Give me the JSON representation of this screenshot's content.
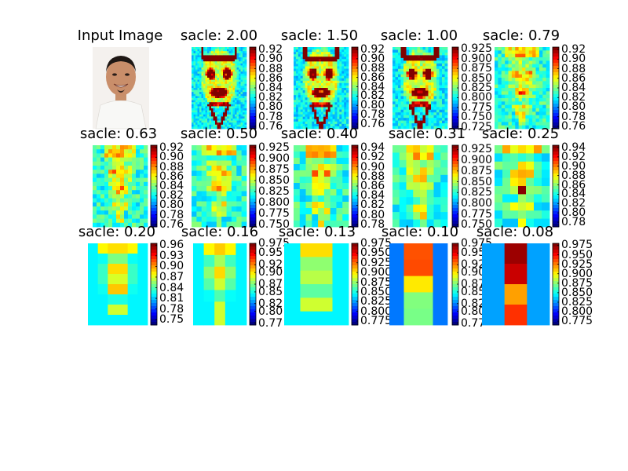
{
  "figure": {
    "background": "#ffffff",
    "colormap": "jet"
  },
  "input_image": {
    "title": "Input Image",
    "description_icon": "portrait-photo"
  },
  "chart_data": [
    {
      "type": "heatmap",
      "title": "sacle: 2.00",
      "colorbar_ticks": [
        "0.92",
        "0.90",
        "0.88",
        "0.86",
        "0.84",
        "0.82",
        "0.80",
        "0.78",
        "0.76"
      ],
      "range": [
        0.755,
        0.925
      ]
    },
    {
      "type": "heatmap",
      "title": "sacle: 1.50",
      "colorbar_ticks": [
        "0.92",
        "0.90",
        "0.88",
        "0.86",
        "0.84",
        "0.82",
        "0.80",
        "0.78",
        "0.76"
      ],
      "range": [
        0.75,
        0.925
      ]
    },
    {
      "type": "heatmap",
      "title": "sacle: 1.00",
      "colorbar_ticks": [
        "0.925",
        "0.900",
        "0.875",
        "0.850",
        "0.825",
        "0.800",
        "0.775",
        "0.750",
        "0.725"
      ],
      "range": [
        0.72,
        0.93
      ]
    },
    {
      "type": "heatmap",
      "title": "sacle: 0.79",
      "colorbar_ticks": [
        "0.92",
        "0.90",
        "0.88",
        "0.86",
        "0.84",
        "0.82",
        "0.80",
        "0.78",
        "0.76"
      ],
      "range": [
        0.755,
        0.925
      ]
    },
    {
      "type": "heatmap",
      "title": "sacle: 0.63",
      "colorbar_ticks": [
        "0.92",
        "0.90",
        "0.88",
        "0.86",
        "0.84",
        "0.82",
        "0.80",
        "0.78",
        "0.76"
      ],
      "range": [
        0.755,
        0.925
      ]
    },
    {
      "type": "heatmap",
      "title": "sacle: 0.50",
      "colorbar_ticks": [
        "0.925",
        "0.900",
        "0.875",
        "0.850",
        "0.825",
        "0.800",
        "0.775",
        "0.750"
      ],
      "range": [
        0.745,
        0.93
      ]
    },
    {
      "type": "heatmap",
      "title": "sacle: 0.40",
      "colorbar_ticks": [
        "0.94",
        "0.92",
        "0.90",
        "0.88",
        "0.86",
        "0.84",
        "0.82",
        "0.80",
        "0.78"
      ],
      "range": [
        0.775,
        0.945
      ]
    },
    {
      "type": "heatmap",
      "title": "sacle: 0.31",
      "colorbar_ticks": [
        "0.925",
        "0.900",
        "0.875",
        "0.850",
        "0.825",
        "0.800",
        "0.775",
        "0.750"
      ],
      "range": [
        0.745,
        0.935
      ]
    },
    {
      "type": "heatmap",
      "title": "sacle: 0.25",
      "colorbar_ticks": [
        "0.94",
        "0.92",
        "0.90",
        "0.88",
        "0.86",
        "0.84",
        "0.82",
        "0.80",
        "0.78"
      ],
      "range": [
        0.77,
        0.945
      ]
    },
    {
      "type": "heatmap",
      "title": "sacle: 0.20",
      "colorbar_ticks": [
        "0.96",
        "0.93",
        "0.90",
        "0.87",
        "0.84",
        "0.81",
        "0.78",
        "0.75"
      ],
      "range": [
        0.735,
        0.965
      ]
    },
    {
      "type": "heatmap",
      "title": "sacle: 0.16",
      "colorbar_ticks": [
        "0.975",
        "0.95",
        "0.92",
        "0.90",
        "0.87",
        "0.85",
        "0.82",
        "0.80",
        "0.77"
      ],
      "range": [
        0.765,
        0.975
      ]
    },
    {
      "type": "heatmap",
      "title": "sacle: 0.13",
      "colorbar_ticks": [
        "0.975",
        "0.950",
        "0.925",
        "0.900",
        "0.875",
        "0.850",
        "0.825",
        "0.800",
        "0.775"
      ],
      "range": [
        0.765,
        0.975
      ]
    },
    {
      "type": "heatmap",
      "title": "sacle: 0.10",
      "colorbar_ticks": [
        "0.975",
        "0.95",
        "0.92",
        "0.90",
        "0.87",
        "0.85",
        "0.82",
        "0.80",
        "0.77"
      ],
      "range": [
        0.765,
        0.975
      ]
    },
    {
      "type": "heatmap",
      "title": "sacle: 0.08",
      "colorbar_ticks": [
        "0.975",
        "0.950",
        "0.925",
        "0.900",
        "0.875",
        "0.850",
        "0.825",
        "0.800",
        "0.775"
      ],
      "range": [
        0.765,
        0.98
      ]
    }
  ]
}
